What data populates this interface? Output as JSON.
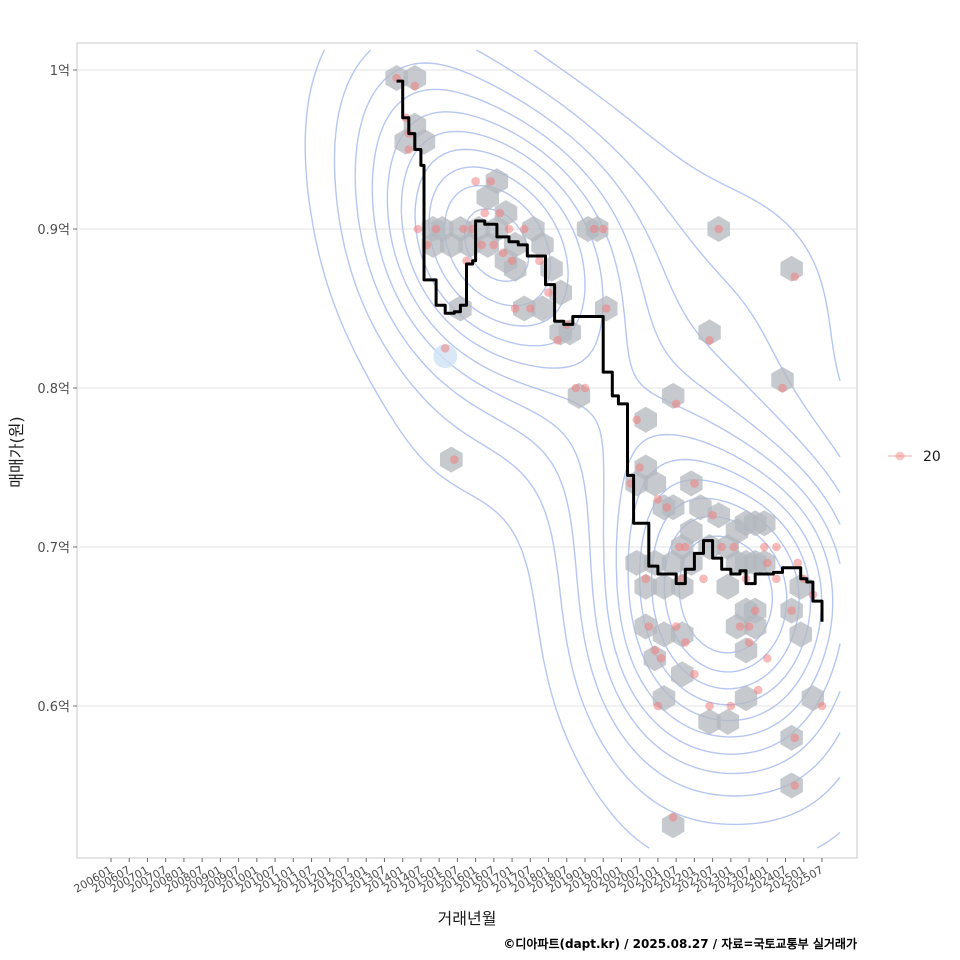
{
  "chart_data": {
    "type": "scatter",
    "xlabel": "거래년월",
    "ylabel": "매매가(원)",
    "caption": "©디아파트(dapt.kr) / 2025.08.27 / 자료=국토교통부 실거래가",
    "y_ticks": [
      {
        "value": 0.6,
        "label": "0.6억"
      },
      {
        "value": 0.7,
        "label": "0.7억"
      },
      {
        "value": 0.8,
        "label": "0.8억"
      },
      {
        "value": 0.9,
        "label": "0.9억"
      },
      {
        "value": 1.0,
        "label": "1억"
      }
    ],
    "ylim": [
      0.5,
      1.02
    ],
    "x_ticks": [
      "200601",
      "200607",
      "200701",
      "200707",
      "200801",
      "200807",
      "200901",
      "200907",
      "201001",
      "201007",
      "201101",
      "201107",
      "201201",
      "201207",
      "201301",
      "201307",
      "201401",
      "201407",
      "201501",
      "201507",
      "201601",
      "201607",
      "201701",
      "201707",
      "201801",
      "201807",
      "201901",
      "201907",
      "202001",
      "202007",
      "202101",
      "202107",
      "202201",
      "202207",
      "202301",
      "202307",
      "202401",
      "202407",
      "202501",
      "202507"
    ],
    "legend": {
      "position": "right",
      "entries": [
        {
          "label": "20",
          "color": "#f08080"
        }
      ]
    },
    "grid": true,
    "colors": {
      "points": "#f08080",
      "hex": "#b3b8bf",
      "contour": "#a9bcef",
      "trend": "#000000"
    },
    "series": [
      {
        "name": "20",
        "kind": "points",
        "points": [
          [
            "2013-11",
            0.995
          ],
          [
            "2014-02",
            0.97
          ],
          [
            "2014-03",
            0.96
          ],
          [
            "2014-03",
            0.95
          ],
          [
            "2014-05",
            0.99
          ],
          [
            "2014-06",
            0.9
          ],
          [
            "2014-09",
            0.89
          ],
          [
            "2014-12",
            0.9
          ],
          [
            "2015-03",
            0.825
          ],
          [
            "2015-06",
            0.755
          ],
          [
            "2015-09",
            0.9
          ],
          [
            "2015-10",
            0.88
          ],
          [
            "2015-12",
            0.9
          ],
          [
            "2016-01",
            0.93
          ],
          [
            "2016-03",
            0.89
          ],
          [
            "2016-04",
            0.91
          ],
          [
            "2016-06",
            0.93
          ],
          [
            "2016-07",
            0.89
          ],
          [
            "2016-09",
            0.91
          ],
          [
            "2016-10",
            0.885
          ],
          [
            "2016-12",
            0.9
          ],
          [
            "2017-01",
            0.88
          ],
          [
            "2017-02",
            0.85
          ],
          [
            "2017-05",
            0.9
          ],
          [
            "2017-07",
            0.85
          ],
          [
            "2017-10",
            0.88
          ],
          [
            "2018-01",
            0.86
          ],
          [
            "2018-04",
            0.83
          ],
          [
            "2018-07",
            0.84
          ],
          [
            "2018-10",
            0.8
          ],
          [
            "2019-01",
            0.8
          ],
          [
            "2019-04",
            0.9
          ],
          [
            "2019-07",
            0.9
          ],
          [
            "2019-08",
            0.85
          ],
          [
            "2020-04",
            0.74
          ],
          [
            "2020-06",
            0.78
          ],
          [
            "2020-07",
            0.75
          ],
          [
            "2020-09",
            0.68
          ],
          [
            "2020-10",
            0.65
          ],
          [
            "2020-12",
            0.635
          ],
          [
            "2021-01",
            0.73
          ],
          [
            "2021-01",
            0.6
          ],
          [
            "2021-02",
            0.63
          ],
          [
            "2021-04",
            0.725
          ],
          [
            "2021-06",
            0.53
          ],
          [
            "2021-07",
            0.65
          ],
          [
            "2021-07",
            0.79
          ],
          [
            "2021-08",
            0.7
          ],
          [
            "2021-09",
            0.68
          ],
          [
            "2021-10",
            0.7
          ],
          [
            "2021-10",
            0.64
          ],
          [
            "2022-01",
            0.62
          ],
          [
            "2022-01",
            0.74
          ],
          [
            "2022-04",
            0.68
          ],
          [
            "2022-06",
            0.83
          ],
          [
            "2022-06",
            0.6
          ],
          [
            "2022-07",
            0.72
          ],
          [
            "2022-09",
            0.9
          ],
          [
            "2022-10",
            0.7
          ],
          [
            "2023-01",
            0.6
          ],
          [
            "2023-02",
            0.7
          ],
          [
            "2023-04",
            0.65
          ],
          [
            "2023-06",
            0.68
          ],
          [
            "2023-07",
            0.65
          ],
          [
            "2023-07",
            0.64
          ],
          [
            "2023-09",
            0.66
          ],
          [
            "2023-10",
            0.61
          ],
          [
            "2023-12",
            0.7
          ],
          [
            "2024-01",
            0.63
          ],
          [
            "2024-01",
            0.69
          ],
          [
            "2024-04",
            0.7
          ],
          [
            "2024-04",
            0.68
          ],
          [
            "2024-06",
            0.8
          ],
          [
            "2024-09",
            0.66
          ],
          [
            "2024-10",
            0.58
          ],
          [
            "2024-10",
            0.55
          ],
          [
            "2024-10",
            0.87
          ],
          [
            "2024-11",
            0.69
          ],
          [
            "2025-01",
            0.68
          ],
          [
            "2025-04",
            0.67
          ],
          [
            "2025-07",
            0.6
          ]
        ]
      },
      {
        "name": "",
        "kind": "trend",
        "points": [
          [
            "2013-11",
            0.993
          ],
          [
            "2014-01",
            0.97
          ],
          [
            "2014-03",
            0.96
          ],
          [
            "2014-05",
            0.95
          ],
          [
            "2014-07",
            0.94
          ],
          [
            "2014-08",
            0.868
          ],
          [
            "2014-10",
            0.868
          ],
          [
            "2014-12",
            0.852
          ],
          [
            "2015-03",
            0.847
          ],
          [
            "2015-06",
            0.848
          ],
          [
            "2015-08",
            0.852
          ],
          [
            "2015-10",
            0.878
          ],
          [
            "2015-12",
            0.88
          ],
          [
            "2016-01",
            0.905
          ],
          [
            "2016-04",
            0.903
          ],
          [
            "2016-08",
            0.895
          ],
          [
            "2016-12",
            0.892
          ],
          [
            "2017-03",
            0.89
          ],
          [
            "2017-06",
            0.883
          ],
          [
            "2017-09",
            0.883
          ],
          [
            "2017-12",
            0.865
          ],
          [
            "2018-03",
            0.842
          ],
          [
            "2018-06",
            0.84
          ],
          [
            "2018-09",
            0.845
          ],
          [
            "2018-12",
            0.845
          ],
          [
            "2019-04",
            0.845
          ],
          [
            "2019-07",
            0.81
          ],
          [
            "2019-10",
            0.795
          ],
          [
            "2019-12",
            0.79
          ],
          [
            "2020-03",
            0.745
          ],
          [
            "2020-05",
            0.715
          ],
          [
            "2020-08",
            0.715
          ],
          [
            "2020-10",
            0.688
          ],
          [
            "2021-01",
            0.683
          ],
          [
            "2021-04",
            0.683
          ],
          [
            "2021-07",
            0.677
          ],
          [
            "2021-10",
            0.686
          ],
          [
            "2022-01",
            0.696
          ],
          [
            "2022-04",
            0.704
          ],
          [
            "2022-07",
            0.693
          ],
          [
            "2022-10",
            0.686
          ],
          [
            "2023-01",
            0.683
          ],
          [
            "2023-04",
            0.685
          ],
          [
            "2023-06",
            0.677
          ],
          [
            "2023-09",
            0.683
          ],
          [
            "2023-12",
            0.683
          ],
          [
            "2024-03",
            0.684
          ],
          [
            "2024-06",
            0.687
          ],
          [
            "2024-09",
            0.687
          ],
          [
            "2024-12",
            0.68
          ],
          [
            "2025-02",
            0.678
          ],
          [
            "2025-04",
            0.666
          ],
          [
            "2025-07",
            0.653
          ]
        ]
      }
    ],
    "hexbins": [
      [
        "2013-11",
        0.995
      ],
      [
        "2014-02",
        0.955
      ],
      [
        "2014-05",
        0.995
      ],
      [
        "2014-05",
        0.965
      ],
      [
        "2014-08",
        0.955
      ],
      [
        "2014-11",
        0.9
      ],
      [
        "2014-11",
        0.89
      ],
      [
        "2015-02",
        0.9
      ],
      [
        "2015-05",
        0.89
      ],
      [
        "2015-08",
        0.9
      ],
      [
        "2015-08",
        0.85
      ],
      [
        "2015-11",
        0.89
      ],
      [
        "2016-02",
        0.9
      ],
      [
        "2016-05",
        0.92
      ],
      [
        "2016-05",
        0.89
      ],
      [
        "2016-08",
        0.93
      ],
      [
        "2016-08",
        0.9
      ],
      [
        "2016-11",
        0.91
      ],
      [
        "2016-11",
        0.88
      ],
      [
        "2017-02",
        0.89
      ],
      [
        "2017-02",
        0.875
      ],
      [
        "2017-05",
        0.85
      ],
      [
        "2017-08",
        0.9
      ],
      [
        "2017-11",
        0.89
      ],
      [
        "2017-11",
        0.85
      ],
      [
        "2018-02",
        0.875
      ],
      [
        "2018-05",
        0.835
      ],
      [
        "2018-05",
        0.86
      ],
      [
        "2018-08",
        0.835
      ],
      [
        "2018-11",
        0.795
      ],
      [
        "2019-02",
        0.9
      ],
      [
        "2019-05",
        0.9
      ],
      [
        "2019-08",
        0.85
      ],
      [
        "2015-05",
        0.755
      ],
      [
        "2020-06",
        0.74
      ],
      [
        "2020-09",
        0.78
      ],
      [
        "2020-09",
        0.75
      ],
      [
        "2020-06",
        0.69
      ],
      [
        "2020-09",
        0.675
      ],
      [
        "2020-09",
        0.65
      ],
      [
        "2020-12",
        0.74
      ],
      [
        "2020-12",
        0.69
      ],
      [
        "2020-12",
        0.63
      ],
      [
        "2021-03",
        0.725
      ],
      [
        "2021-03",
        0.675
      ],
      [
        "2021-03",
        0.645
      ],
      [
        "2021-03",
        0.605
      ],
      [
        "2021-06",
        0.795
      ],
      [
        "2021-06",
        0.725
      ],
      [
        "2021-06",
        0.69
      ],
      [
        "2021-06",
        0.525
      ],
      [
        "2021-09",
        0.7
      ],
      [
        "2021-09",
        0.675
      ],
      [
        "2021-09",
        0.645
      ],
      [
        "2021-09",
        0.62
      ],
      [
        "2021-12",
        0.74
      ],
      [
        "2021-12",
        0.71
      ],
      [
        "2021-12",
        0.69
      ],
      [
        "2022-03",
        0.725
      ],
      [
        "2022-06",
        0.835
      ],
      [
        "2022-06",
        0.7
      ],
      [
        "2022-06",
        0.59
      ],
      [
        "2022-09",
        0.9
      ],
      [
        "2022-09",
        0.72
      ],
      [
        "2022-12",
        0.7
      ],
      [
        "2022-12",
        0.675
      ],
      [
        "2022-12",
        0.59
      ],
      [
        "2023-03",
        0.71
      ],
      [
        "2023-03",
        0.69
      ],
      [
        "2023-03",
        0.65
      ],
      [
        "2023-06",
        0.715
      ],
      [
        "2023-06",
        0.69
      ],
      [
        "2023-06",
        0.66
      ],
      [
        "2023-06",
        0.635
      ],
      [
        "2023-06",
        0.605
      ],
      [
        "2023-09",
        0.715
      ],
      [
        "2023-09",
        0.69
      ],
      [
        "2023-09",
        0.66
      ],
      [
        "2023-09",
        0.65
      ],
      [
        "2023-12",
        0.715
      ],
      [
        "2023-12",
        0.69
      ],
      [
        "2024-06",
        0.805
      ],
      [
        "2024-09",
        0.875
      ],
      [
        "2024-09",
        0.66
      ],
      [
        "2024-09",
        0.58
      ],
      [
        "2024-09",
        0.55
      ],
      [
        "2024-12",
        0.675
      ],
      [
        "2024-12",
        0.645
      ],
      [
        "2025-04",
        0.605
      ]
    ]
  }
}
